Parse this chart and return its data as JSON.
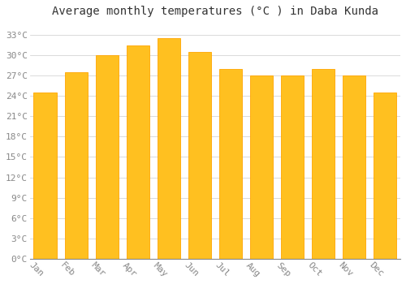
{
  "title": "Average monthly temperatures (°C ) in Daba Kunda",
  "months": [
    "Jan",
    "Feb",
    "Mar",
    "Apr",
    "May",
    "Jun",
    "Jul",
    "Aug",
    "Sep",
    "Oct",
    "Nov",
    "Dec"
  ],
  "values": [
    24.5,
    27.5,
    30.0,
    31.5,
    32.5,
    30.5,
    28.0,
    27.0,
    27.0,
    28.0,
    27.0,
    24.5
  ],
  "bar_color_face": "#FFC020",
  "bar_color_edge": "#FFA500",
  "background_color": "#FFFFFF",
  "grid_color": "#CCCCCC",
  "ylim": [
    0,
    35
  ],
  "yticks": [
    0,
    3,
    6,
    9,
    12,
    15,
    18,
    21,
    24,
    27,
    30,
    33
  ],
  "ytick_labels": [
    "0°C",
    "3°C",
    "6°C",
    "9°C",
    "12°C",
    "15°C",
    "18°C",
    "21°C",
    "24°C",
    "27°C",
    "30°C",
    "33°C"
  ],
  "title_fontsize": 10,
  "tick_fontsize": 8,
  "tick_color": "#888888",
  "label_rotation": -45
}
